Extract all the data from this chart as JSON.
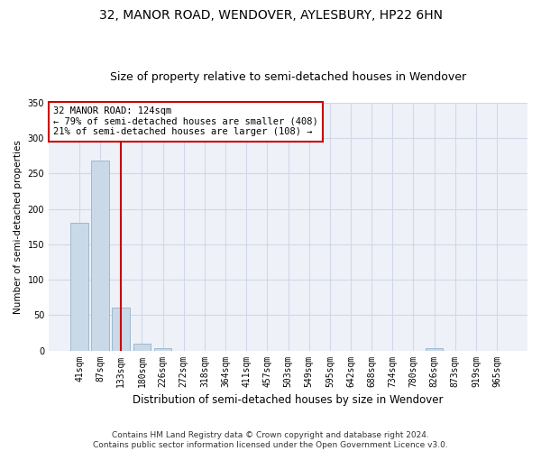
{
  "title": "32, MANOR ROAD, WENDOVER, AYLESBURY, HP22 6HN",
  "subtitle": "Size of property relative to semi-detached houses in Wendover",
  "xlabel": "Distribution of semi-detached houses by size in Wendover",
  "ylabel": "Number of semi-detached properties",
  "categories": [
    "41sqm",
    "87sqm",
    "133sqm",
    "180sqm",
    "226sqm",
    "272sqm",
    "318sqm",
    "364sqm",
    "411sqm",
    "457sqm",
    "503sqm",
    "549sqm",
    "595sqm",
    "642sqm",
    "688sqm",
    "734sqm",
    "780sqm",
    "826sqm",
    "873sqm",
    "919sqm",
    "965sqm"
  ],
  "values": [
    180,
    268,
    60,
    10,
    3,
    0,
    0,
    0,
    0,
    0,
    0,
    0,
    0,
    0,
    0,
    0,
    0,
    3,
    0,
    0,
    0
  ],
  "bar_color": "#c9d9e8",
  "bar_edge_color": "#a0b8cc",
  "highlight_index": 2,
  "highlight_line_color": "#cc0000",
  "annotation_text": "32 MANOR ROAD: 124sqm\n← 79% of semi-detached houses are smaller (408)\n21% of semi-detached houses are larger (108) →",
  "annotation_box_color": "#ffffff",
  "annotation_box_edge_color": "#cc0000",
  "ylim": [
    0,
    350
  ],
  "yticks": [
    0,
    50,
    100,
    150,
    200,
    250,
    300,
    350
  ],
  "grid_color": "#d0d8e8",
  "bg_color": "#eef2f8",
  "footer_text": "Contains HM Land Registry data © Crown copyright and database right 2024.\nContains public sector information licensed under the Open Government Licence v3.0.",
  "title_fontsize": 10,
  "subtitle_fontsize": 9,
  "xlabel_fontsize": 8.5,
  "ylabel_fontsize": 7.5,
  "tick_fontsize": 7,
  "footer_fontsize": 6.5,
  "ann_fontsize": 7.5
}
